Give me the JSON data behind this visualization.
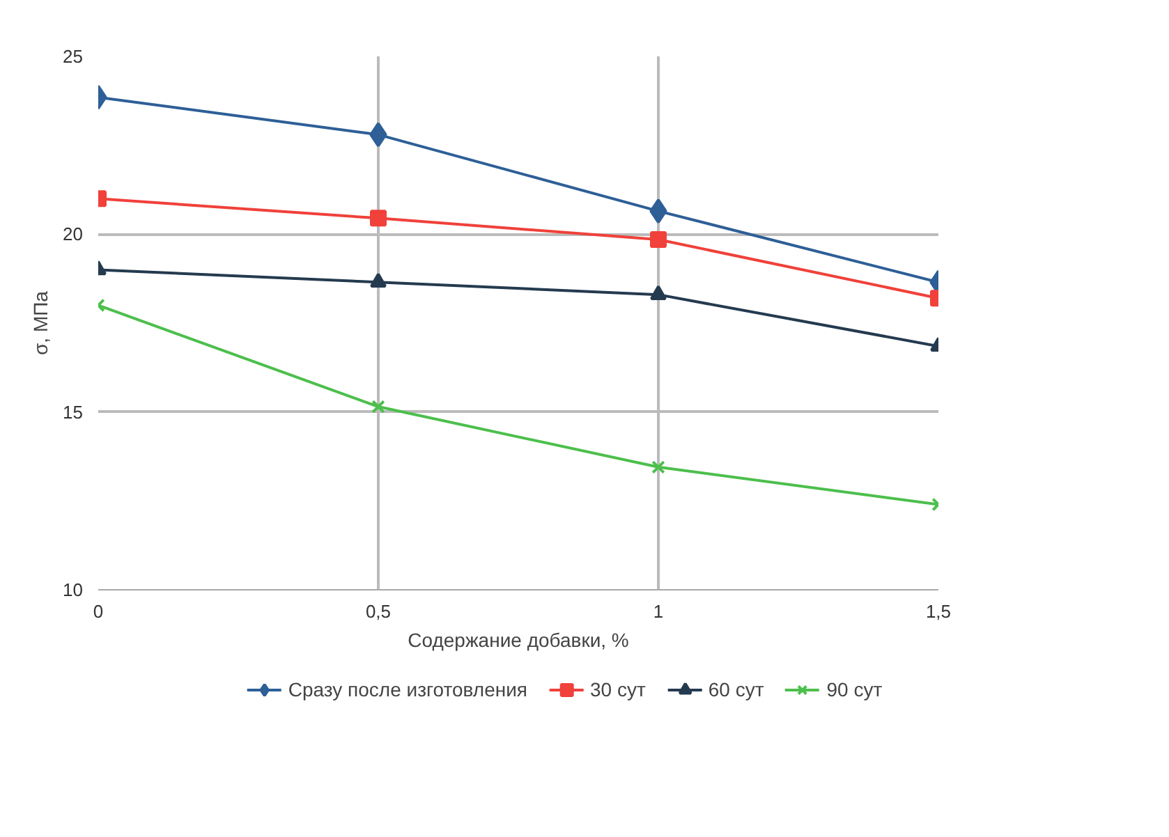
{
  "chart_data": {
    "type": "line",
    "xlabel": "Содержание добавки, %",
    "ylabel": "σ, МПа",
    "x": [
      0,
      0.5,
      1,
      1.5
    ],
    "xlim": [
      0,
      1.5
    ],
    "xticks": [
      0,
      {
        "value": 0.5,
        "label": "0,5"
      },
      1,
      {
        "value": 1.5,
        "label": "1,5"
      }
    ],
    "ylim": [
      10,
      25
    ],
    "yticks": [
      10,
      15,
      20,
      25
    ],
    "grid": true,
    "legend": "bottom",
    "line_style": "solid",
    "series": [
      {
        "name": "Сразу после изготовления",
        "color": "#2e5f97",
        "marker": "diamond",
        "values": [
          23.85,
          22.8,
          20.65,
          18.65
        ]
      },
      {
        "name": "30 сут",
        "color": "#f0413a",
        "marker": "square",
        "values": [
          21.0,
          20.45,
          19.85,
          18.2
        ]
      },
      {
        "name": "60 сут",
        "color": "#243a4f",
        "marker": "triangle",
        "values": [
          19.0,
          18.65,
          18.3,
          16.85
        ]
      },
      {
        "name": "90 сут",
        "color": "#4cbf4c",
        "marker": "cross",
        "values": [
          18.0,
          15.15,
          13.45,
          12.4
        ]
      }
    ]
  }
}
